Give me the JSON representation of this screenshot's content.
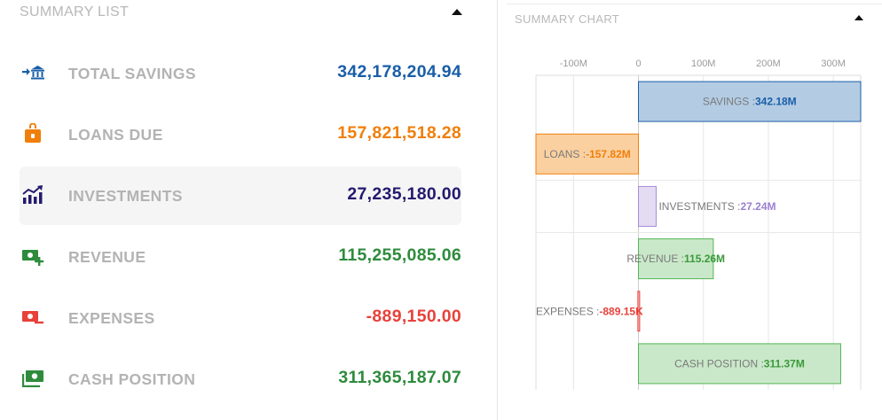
{
  "summary_list": {
    "title": "SUMMARY LIST",
    "items": [
      {
        "label": "TOTAL SAVINGS",
        "value": "342,178,204.94",
        "color": "#1a5ea8",
        "icon": "bank-transfer-icon",
        "active": false
      },
      {
        "label": "LOANS DUE",
        "value": "157,821,518.28",
        "color": "#f07f0a",
        "icon": "locked-bag-icon",
        "active": false
      },
      {
        "label": "INVESTMENTS",
        "value": "27,235,180.00",
        "color": "#231a6e",
        "icon": "growth-chart-icon",
        "active": true
      },
      {
        "label": "REVENUE",
        "value": "115,255,085.06",
        "color": "#2e8b3c",
        "icon": "cash-plus-icon",
        "active": false
      },
      {
        "label": "EXPENSES",
        "value": "-889,150.00",
        "color": "#e8413a",
        "icon": "cash-minus-icon",
        "active": false
      },
      {
        "label": "CASH POSITION",
        "value": "311,365,187.07",
        "color": "#2e8b3c",
        "icon": "cash-stack-icon",
        "active": false
      }
    ]
  },
  "summary_chart": {
    "title": "SUMMARY CHART"
  },
  "chart_data": {
    "type": "bar",
    "orientation": "horizontal",
    "title": "",
    "xlabel": "",
    "ylabel": "",
    "xlim": [
      -157820000,
      342180000
    ],
    "tick_values": [
      -100000000,
      0,
      100000000,
      200000000,
      300000000
    ],
    "tick_labels": [
      "-100M",
      "0",
      "100M",
      "200M",
      "300M"
    ],
    "grid": true,
    "legend": "none",
    "series": [
      {
        "category": "SAVINGS",
        "value": 342180000,
        "label": "342.18M",
        "fill": "#b3cce4",
        "stroke": "#1a5ea8",
        "text_color": "#1a5ea8"
      },
      {
        "category": "LOANS",
        "value": -157820000,
        "label": "-157.82M",
        "fill": "#fbd0a0",
        "stroke": "#f07f0a",
        "text_color": "#f07f0a"
      },
      {
        "category": "INVESTMENTS",
        "value": 27240000,
        "label": "27.24M",
        "fill": "#e3dcf3",
        "stroke": "#a78bd6",
        "text_color": "#9b7fd0"
      },
      {
        "category": "REVENUE",
        "value": 115260000,
        "label": "115.26M",
        "fill": "#c9e8c9",
        "stroke": "#55b455",
        "text_color": "#3a9a3a"
      },
      {
        "category": "EXPENSES",
        "value": -889150,
        "label": "-889.15K",
        "fill": "#f8c6c4",
        "stroke": "#e8413a",
        "text_color": "#e8413a"
      },
      {
        "category": "CASH POSITION",
        "value": 311370000,
        "label": "311.37M",
        "fill": "#c9e8c9",
        "stroke": "#55b455",
        "text_color": "#3a9a3a"
      }
    ]
  }
}
